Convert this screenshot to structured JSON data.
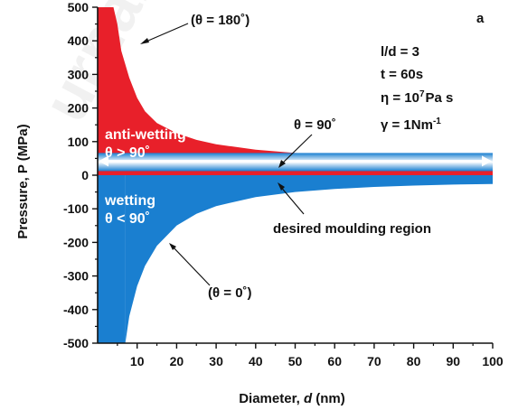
{
  "chart_data": {
    "type": "area",
    "panel_label": "a",
    "xlabel_prefix": "Diameter, ",
    "xlabel_var": "d",
    "xlabel_unit": " (nm)",
    "ylabel": "Pressure, P (MPa)",
    "xlim": [
      0,
      100
    ],
    "ylim": [
      -500,
      500
    ],
    "x_ticks": [
      10,
      20,
      30,
      40,
      50,
      60,
      70,
      80,
      90,
      100
    ],
    "y_ticks": [
      500,
      400,
      300,
      200,
      100,
      0,
      -100,
      -200,
      -300,
      -400,
      -500
    ],
    "series": [
      {
        "name": "(θ = 180˚)",
        "region": "anti-wetting",
        "color": "#e8202a",
        "x": [
          4,
          5,
          6,
          8,
          10,
          12,
          15,
          20,
          25,
          30,
          40,
          50,
          60,
          70,
          80,
          90,
          100
        ],
        "y": [
          500,
          450,
          370,
          290,
          230,
          190,
          155,
          125,
          105,
          92,
          76,
          66,
          60,
          56,
          53,
          51,
          49
        ]
      },
      {
        "name": "(θ = 0˚)",
        "region": "wetting",
        "color": "#1a7fd0",
        "x": [
          7,
          8,
          10,
          12,
          15,
          20,
          25,
          30,
          40,
          50,
          60,
          70,
          80,
          90,
          100
        ],
        "y": [
          -500,
          -420,
          -330,
          -270,
          -210,
          -150,
          -115,
          -92,
          -65,
          -50,
          -41,
          -35,
          -31,
          -28,
          -26
        ]
      }
    ],
    "theta90_level": 42,
    "annotations": {
      "theta180": "(θ = 180˚)",
      "theta0": "(θ = 0˚)",
      "theta90": "θ = 90˚",
      "anti_wetting": "anti-wetting",
      "anti_wetting_cond": "θ > 90˚",
      "wetting": "wetting",
      "wetting_cond": "θ < 90˚",
      "desired": "desired moulding region"
    },
    "params": {
      "ld": "l/d = 3",
      "t": "t = 60s",
      "eta_prefix": "η = 10",
      "eta_exp": "7",
      "eta_suffix": "Pa s",
      "gamma_prefix": "γ = 1Nm",
      "gamma_exp": "-1"
    },
    "watermark": "urnal"
  }
}
